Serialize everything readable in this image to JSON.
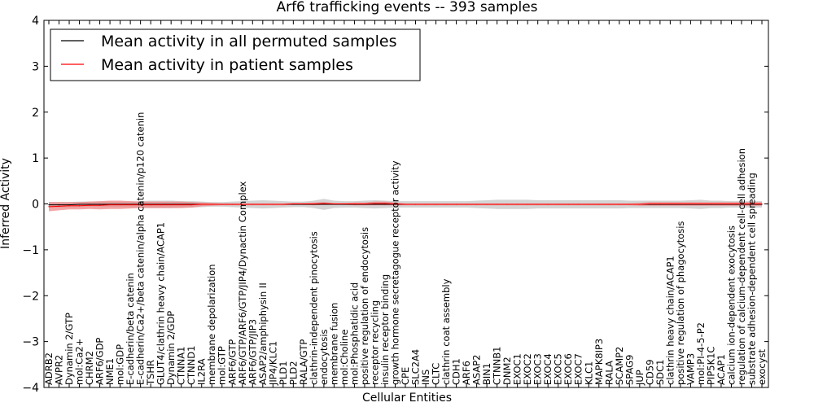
{
  "chart_data": {
    "type": "line",
    "title": "Arf6 trafficking events -- 393 samples",
    "xlabel": "Cellular Entities",
    "ylabel": "Inferred Activity",
    "ylim": [
      -4,
      4
    ],
    "yticks": [
      "-4",
      "-3",
      "-2",
      "-1",
      "0",
      "1",
      "2",
      "3",
      "4"
    ],
    "legend_position": "top-left",
    "categories": [
      "ADRB2",
      "AVPR2",
      "Dynamin 2/GTP",
      "mol:Ca2+",
      "CHRM2",
      "ARF6/GDP",
      "NME1",
      "mol:GDP",
      "E-cadherin/beta catenin",
      "E-cadherin/Ca2+/beta catenin/alpha catenin/p120 catenin",
      "TSHR",
      "GLUT4/clathrin heavy chain/ACAP1",
      "Dynamin 2/GDP",
      "CTNNA1",
      "CTNND1",
      "IL2RA",
      "membrane depolarization",
      "mol:GTP",
      "ARF6/GTP",
      "ARF6/GTP/ARF6/GTP/JIP4/Dynactin Complex",
      "ARF6/GTP/JIP3",
      "ASAP2/amphiphysin II",
      "JIP4/KLC1",
      "PLD1",
      "PLD2",
      "RALA/GTP",
      "clathrin-independent pinocytosis",
      "endocytosis",
      "membrane fusion",
      "mol:Choline",
      "mol:Phosphatidic acid",
      "positive regulation of endocytosis",
      "receptor recycling",
      "insulin receptor binding",
      "growth hormone secretagogue receptor activity",
      "CPE",
      "SLC2A4",
      "INS",
      "CLTC",
      "clathrin coat assembly",
      "CDH1",
      "ARF6",
      "ASAP2",
      "BIN1",
      "CTNNB1",
      "DNM2",
      "EXOC1",
      "EXOC2",
      "EXOC3",
      "EXOC4",
      "EXOC5",
      "EXOC6",
      "EXOC7",
      "KLC1",
      "MAPK8IP3",
      "RALA",
      "SCAMP2",
      "SPAG9",
      "JUP",
      "CD59",
      "SDC1",
      "clathrin heavy chain/ACAP1",
      "positive regulation of phagocytosis",
      "VAMP3",
      "mol:PI-4-5-P2",
      "PIP5K1C",
      "ACAP1",
      "calcium ion-dependent exocytosis",
      "regulation of calcium-dependent cell-cell adhesion",
      "substrate adhesion-dependent cell spreading",
      "exocyst"
    ],
    "series": [
      {
        "name": "Mean activity in all permuted samples",
        "color": "#000000",
        "band_color": "#b0b0b0",
        "values": [
          -0.02,
          -0.02,
          -0.02,
          -0.01,
          -0.01,
          -0.01,
          -0.01,
          -0.01,
          -0.01,
          -0.01,
          -0.01,
          -0.01,
          -0.01,
          -0.01,
          -0.01,
          -0.01,
          -0.01,
          -0.01,
          -0.01,
          -0.01,
          -0.01,
          -0.01,
          -0.01,
          -0.01,
          -0.01,
          -0.01,
          -0.01,
          -0.01,
          -0.01,
          -0.01,
          -0.01,
          -0.01,
          -0.01,
          -0.01,
          -0.01,
          -0.01,
          -0.01,
          -0.01,
          -0.01,
          -0.01,
          -0.01,
          -0.01,
          -0.01,
          -0.01,
          -0.01,
          -0.01,
          -0.01,
          -0.01,
          -0.01,
          -0.01,
          -0.01,
          -0.01,
          -0.01,
          -0.01,
          -0.01,
          -0.01,
          -0.01,
          -0.01,
          -0.01,
          -0.01,
          -0.01,
          -0.01,
          -0.01,
          -0.01,
          -0.01,
          -0.01,
          -0.01,
          -0.01,
          -0.01,
          -0.01,
          -0.01
        ],
        "band": [
          0.06,
          0.06,
          0.06,
          0.06,
          0.06,
          0.06,
          0.06,
          0.06,
          0.06,
          0.07,
          0.08,
          0.08,
          0.08,
          0.07,
          0.07,
          0.06,
          0.05,
          0.05,
          0.06,
          0.07,
          0.08,
          0.09,
          0.08,
          0.07,
          0.06,
          0.06,
          0.08,
          0.12,
          0.08,
          0.07,
          0.07,
          0.08,
          0.09,
          0.08,
          0.07,
          0.07,
          0.07,
          0.07,
          0.07,
          0.07,
          0.07,
          0.07,
          0.08,
          0.09,
          0.1,
          0.1,
          0.1,
          0.1,
          0.09,
          0.09,
          0.09,
          0.09,
          0.09,
          0.09,
          0.09,
          0.09,
          0.09,
          0.08,
          0.08,
          0.08,
          0.08,
          0.08,
          0.08,
          0.09,
          0.1,
          0.08,
          0.08,
          0.07,
          0.07,
          0.07,
          0.07
        ]
      },
      {
        "name": "Mean activity in patient samples",
        "color": "#ff0000",
        "band_color": "#f08080",
        "values": [
          -0.06,
          -0.05,
          -0.04,
          -0.04,
          -0.03,
          -0.03,
          -0.02,
          -0.02,
          -0.02,
          -0.02,
          -0.02,
          -0.02,
          -0.02,
          -0.02,
          -0.02,
          -0.01,
          -0.01,
          -0.01,
          -0.01,
          -0.01,
          -0.01,
          -0.01,
          -0.01,
          -0.01,
          0.0,
          0.0,
          0.0,
          0.01,
          0.0,
          0.0,
          0.0,
          0.0,
          0.01,
          0.01,
          0.0,
          -0.01,
          -0.01,
          -0.01,
          -0.01,
          -0.01,
          -0.01,
          -0.01,
          -0.01,
          -0.01,
          -0.01,
          -0.01,
          -0.01,
          -0.01,
          -0.01,
          -0.01,
          -0.01,
          -0.01,
          -0.01,
          -0.01,
          -0.01,
          -0.01,
          -0.01,
          -0.01,
          -0.01,
          0.0,
          0.0,
          0.0,
          0.0,
          0.0,
          0.0,
          0.0,
          0.0,
          0.0,
          0.0,
          0.0,
          0.0
        ],
        "band": [
          0.1,
          0.09,
          0.08,
          0.08,
          0.08,
          0.09,
          0.09,
          0.09,
          0.08,
          0.07,
          0.07,
          0.07,
          0.07,
          0.07,
          0.06,
          0.04,
          0.03,
          0.02,
          0.02,
          0.02,
          0.02,
          0.02,
          0.02,
          0.02,
          0.02,
          0.02,
          0.03,
          0.03,
          0.02,
          0.02,
          0.03,
          0.03,
          0.04,
          0.04,
          0.03,
          0.02,
          0.02,
          0.02,
          0.02,
          0.02,
          0.02,
          0.02,
          0.02,
          0.02,
          0.02,
          0.02,
          0.02,
          0.02,
          0.02,
          0.02,
          0.02,
          0.02,
          0.02,
          0.02,
          0.02,
          0.02,
          0.02,
          0.02,
          0.03,
          0.04,
          0.04,
          0.04,
          0.04,
          0.04,
          0.04,
          0.04,
          0.04,
          0.04,
          0.04,
          0.04,
          0.04
        ]
      }
    ],
    "grid": false
  }
}
